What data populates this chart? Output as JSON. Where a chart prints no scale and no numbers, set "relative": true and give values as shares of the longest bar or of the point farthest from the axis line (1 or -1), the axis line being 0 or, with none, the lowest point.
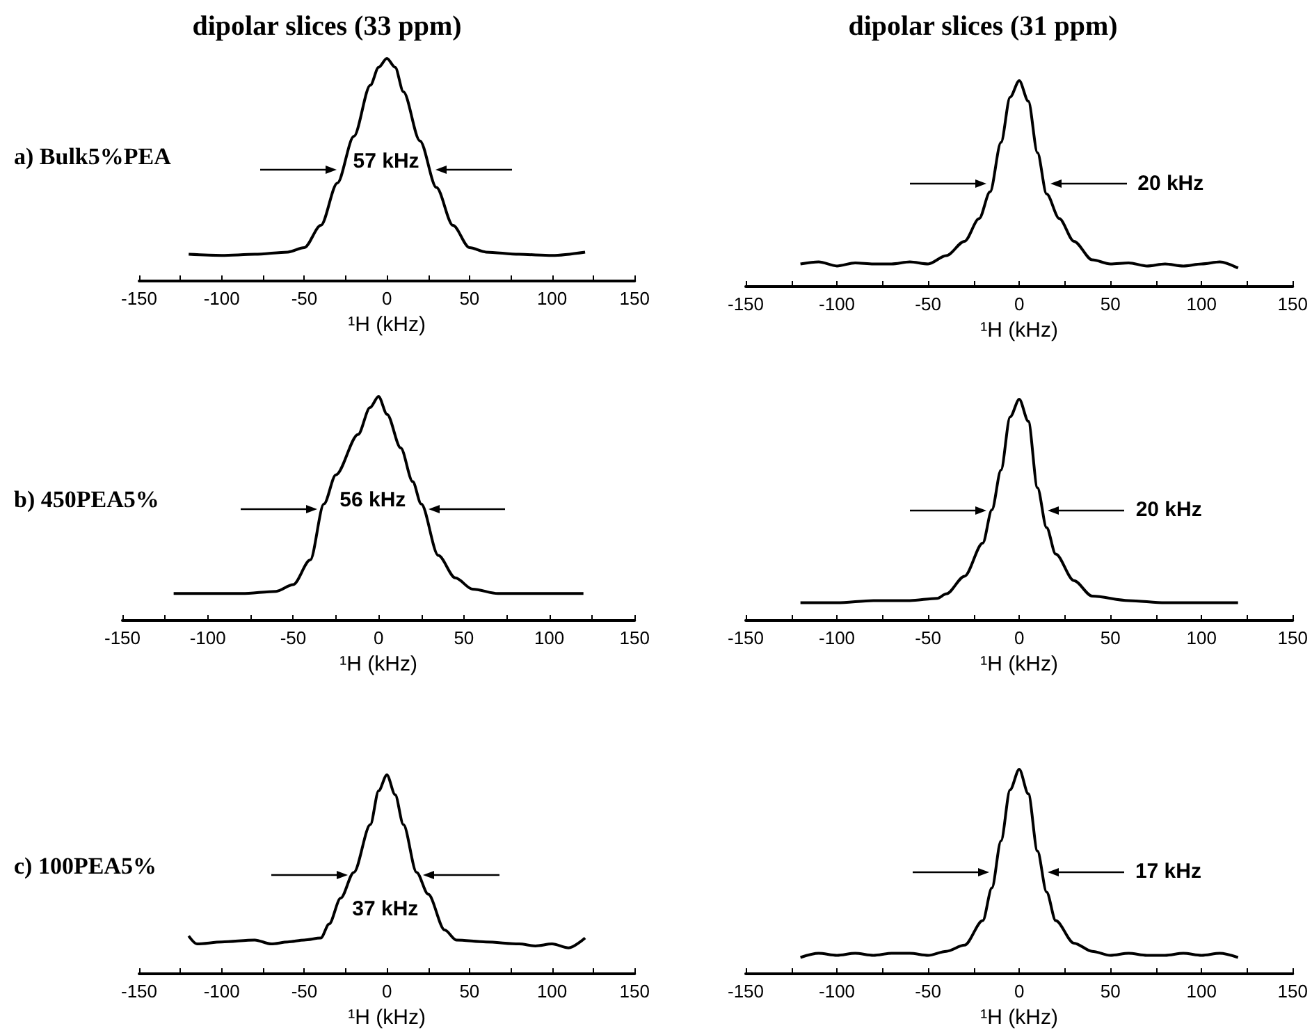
{
  "chart_data": [
    {
      "type": "line",
      "title": "dipolar slices (33 ppm)",
      "xlabel": "¹H (kHz)",
      "relative": true,
      "color": "#000000",
      "xlim": [
        -150,
        150
      ],
      "xticks": [
        -150,
        {
          "value": -125,
          "label": null
        },
        -100,
        {
          "value": -75,
          "label": null
        },
        -50,
        {
          "value": -25,
          "label": null
        },
        0,
        {
          "value": 25,
          "label": null
        },
        50,
        {
          "value": 75,
          "label": null
        },
        100,
        {
          "value": 125,
          "label": null
        },
        150
      ],
      "annotations": [
        "a) Bulk5%PEA",
        "57 kHz"
      ],
      "x": [
        -120,
        -100,
        -80,
        -60,
        -50,
        -40,
        -30,
        -20,
        -10,
        -5,
        0,
        5,
        10,
        20,
        30,
        40,
        50,
        60,
        80,
        100,
        120
      ],
      "values": [
        0.12,
        0.115,
        0.12,
        0.13,
        0.15,
        0.25,
        0.44,
        0.65,
        0.88,
        0.96,
        1,
        0.96,
        0.85,
        0.63,
        0.42,
        0.25,
        0.15,
        0.13,
        0.12,
        0.115,
        0.13
      ]
    },
    {
      "type": "line",
      "title": "dipolar slices (31 ppm)",
      "xlabel": "¹H (kHz)",
      "relative": true,
      "color": "#000000",
      "xlim": [
        -150,
        150
      ],
      "xticks": [
        -150,
        {
          "value": -125,
          "label": null
        },
        -100,
        {
          "value": -75,
          "label": null
        },
        -50,
        {
          "value": -25,
          "label": null
        },
        0,
        {
          "value": 25,
          "label": null
        },
        50,
        {
          "value": 75,
          "label": null
        },
        100,
        {
          "value": 125,
          "label": null
        },
        150
      ],
      "annotations": [
        "20 kHz"
      ],
      "x": [
        -120,
        -110,
        -100,
        -90,
        -80,
        -70,
        -60,
        -50,
        -40,
        -30,
        -22,
        -16,
        -10,
        -5,
        0,
        5,
        10,
        15,
        22,
        30,
        40,
        50,
        60,
        70,
        80,
        90,
        100,
        110,
        120
      ],
      "values": [
        0.11,
        0.12,
        0.1,
        0.115,
        0.11,
        0.11,
        0.12,
        0.11,
        0.15,
        0.22,
        0.33,
        0.46,
        0.7,
        0.92,
        1,
        0.9,
        0.65,
        0.45,
        0.33,
        0.22,
        0.13,
        0.11,
        0.115,
        0.1,
        0.11,
        0.1,
        0.11,
        0.12,
        0.09
      ]
    },
    {
      "type": "line",
      "xlabel": "¹H (kHz)",
      "relative": true,
      "color": "#000000",
      "xlim": [
        -150,
        150
      ],
      "xticks": [
        -150,
        {
          "value": -125,
          "label": null
        },
        -100,
        {
          "value": -75,
          "label": null
        },
        -50,
        {
          "value": -25,
          "label": null
        },
        0,
        {
          "value": 25,
          "label": null
        },
        50,
        {
          "value": 75,
          "label": null
        },
        100,
        {
          "value": 125,
          "label": null
        },
        150
      ],
      "annotations": [
        "b) 450PEA5%",
        "56 kHz"
      ],
      "x": [
        -120,
        -100,
        -80,
        -60,
        -50,
        -40,
        -32,
        -25,
        -12,
        -5,
        0,
        5,
        13,
        20,
        25,
        35,
        45,
        55,
        70,
        90,
        100,
        120
      ],
      "values": [
        0.12,
        0.12,
        0.12,
        0.13,
        0.16,
        0.27,
        0.52,
        0.65,
        0.83,
        0.95,
        1,
        0.92,
        0.77,
        0.62,
        0.52,
        0.29,
        0.19,
        0.14,
        0.12,
        0.12,
        0.12,
        0.12
      ]
    },
    {
      "type": "line",
      "xlabel": "¹H (kHz)",
      "relative": true,
      "color": "#000000",
      "xlim": [
        -150,
        150
      ],
      "xticks": [
        -150,
        {
          "value": -125,
          "label": null
        },
        -100,
        {
          "value": -75,
          "label": null
        },
        -50,
        {
          "value": -25,
          "label": null
        },
        0,
        {
          "value": 25,
          "label": null
        },
        50,
        {
          "value": 75,
          "label": null
        },
        100,
        {
          "value": 125,
          "label": null
        },
        150
      ],
      "annotations": [
        "20 kHz"
      ],
      "x": [
        -120,
        -100,
        -80,
        -60,
        -45,
        -40,
        -30,
        -20,
        -15,
        -10,
        -5,
        0,
        5,
        10,
        15,
        20,
        30,
        40,
        60,
        80,
        100,
        120
      ],
      "values": [
        0.08,
        0.08,
        0.09,
        0.09,
        0.1,
        0.12,
        0.2,
        0.35,
        0.5,
        0.68,
        0.92,
        1,
        0.9,
        0.6,
        0.42,
        0.3,
        0.18,
        0.11,
        0.09,
        0.08,
        0.08,
        0.08
      ]
    },
    {
      "type": "line",
      "xlabel": "¹H (kHz)",
      "relative": true,
      "color": "#000000",
      "xlim": [
        -150,
        150
      ],
      "xticks": [
        -150,
        {
          "value": -125,
          "label": null
        },
        -100,
        {
          "value": -75,
          "label": null
        },
        -50,
        {
          "value": -25,
          "label": null
        },
        0,
        {
          "value": 25,
          "label": null
        },
        50,
        {
          "value": 75,
          "label": null
        },
        100,
        {
          "value": 125,
          "label": null
        },
        150
      ],
      "annotations": [
        "c) 100PEA5%",
        "37 kHz"
      ],
      "x": [
        -120,
        -115,
        -100,
        -80,
        -70,
        -60,
        -50,
        -40,
        -35,
        -28,
        -20,
        -10,
        -5,
        0,
        5,
        10,
        18,
        25,
        35,
        42,
        60,
        80,
        90,
        100,
        110,
        120
      ],
      "values": [
        0.19,
        0.15,
        0.16,
        0.17,
        0.15,
        0.16,
        0.17,
        0.18,
        0.25,
        0.38,
        0.51,
        0.75,
        0.92,
        1,
        0.9,
        0.75,
        0.51,
        0.4,
        0.22,
        0.17,
        0.16,
        0.15,
        0.14,
        0.15,
        0.13,
        0.18
      ]
    },
    {
      "type": "line",
      "xlabel": "¹H (kHz)",
      "relative": true,
      "color": "#000000",
      "xlim": [
        -150,
        150
      ],
      "xticks": [
        -150,
        {
          "value": -125,
          "label": null
        },
        -100,
        {
          "value": -75,
          "label": null
        },
        -50,
        {
          "value": -25,
          "label": null
        },
        0,
        {
          "value": 25,
          "label": null
        },
        50,
        {
          "value": 75,
          "label": null
        },
        100,
        {
          "value": 125,
          "label": null
        },
        150
      ],
      "annotations": [
        "17 kHz"
      ],
      "x": [
        -120,
        -110,
        -100,
        -90,
        -80,
        -70,
        -60,
        -50,
        -40,
        -30,
        -20,
        -15,
        -10,
        -5,
        0,
        5,
        10,
        15,
        20,
        30,
        40,
        50,
        60,
        70,
        80,
        90,
        100,
        110,
        120
      ],
      "values": [
        0.08,
        0.1,
        0.09,
        0.1,
        0.09,
        0.1,
        0.1,
        0.09,
        0.11,
        0.14,
        0.26,
        0.42,
        0.65,
        0.9,
        1,
        0.88,
        0.6,
        0.4,
        0.26,
        0.15,
        0.11,
        0.09,
        0.1,
        0.09,
        0.09,
        0.1,
        0.09,
        0.1,
        0.08
      ]
    }
  ]
}
